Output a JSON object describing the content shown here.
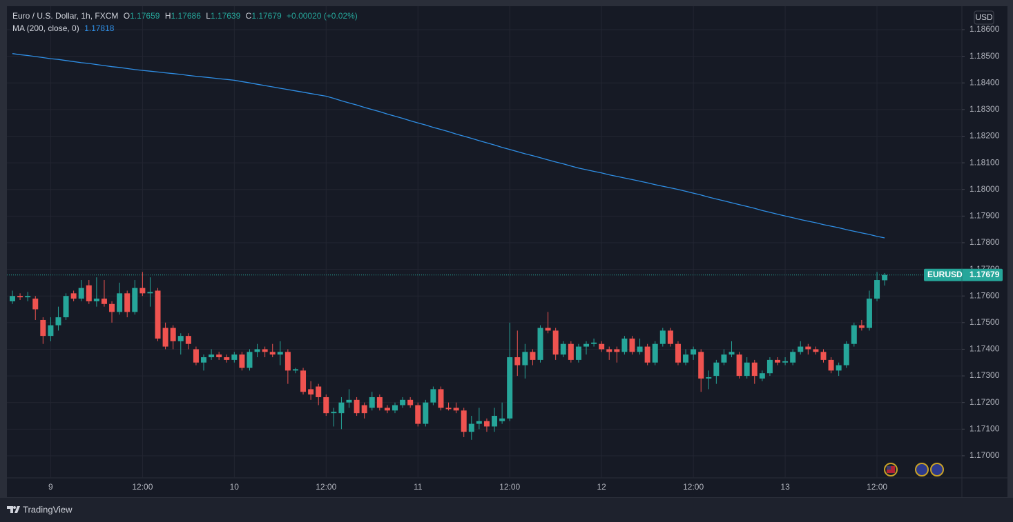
{
  "chart_data": {
    "type": "candlestick",
    "title": "Euro / U.S. Dollar, 1h, FXCM",
    "ohlc_labels": [
      "O",
      "H",
      "L",
      "C"
    ],
    "change": "+0.00020 (+0.02%)",
    "currency": "USD",
    "symbol": "EURUSD",
    "brand": "TradingView",
    "up_color": "#26a69a",
    "down_color": "#ef5350",
    "grid": true,
    "ylim": [
      1.16917,
      1.18688
    ],
    "yticks": [
      {
        "value": 1.17,
        "label": "1.17000"
      },
      {
        "value": 1.171,
        "label": "1.17100"
      },
      {
        "value": 1.172,
        "label": "1.17200"
      },
      {
        "value": 1.173,
        "label": "1.17300"
      },
      {
        "value": 1.174,
        "label": "1.17400"
      },
      {
        "value": 1.175,
        "label": "1.17500"
      },
      {
        "value": 1.176,
        "label": "1.17600"
      },
      {
        "value": 1.177,
        "label": "1.17700"
      },
      {
        "value": 1.178,
        "label": "1.17800"
      },
      {
        "value": 1.179,
        "label": "1.17900"
      },
      {
        "value": 1.18,
        "label": "1.18000"
      },
      {
        "value": 1.181,
        "label": "1.18100"
      },
      {
        "value": 1.182,
        "label": "1.18200"
      },
      {
        "value": 1.183,
        "label": "1.18300"
      },
      {
        "value": 1.184,
        "label": "1.18400"
      },
      {
        "value": 1.185,
        "label": "1.18500"
      },
      {
        "value": 1.186,
        "label": "1.18600"
      }
    ],
    "categories": [
      null,
      null,
      null,
      null,
      null,
      "9",
      null,
      null,
      null,
      null,
      null,
      null,
      null,
      null,
      null,
      null,
      null,
      "12:00",
      null,
      null,
      null,
      null,
      null,
      null,
      null,
      null,
      null,
      null,
      null,
      "10",
      null,
      null,
      null,
      null,
      null,
      null,
      null,
      null,
      null,
      null,
      null,
      "12:00",
      null,
      null,
      null,
      null,
      null,
      null,
      null,
      null,
      null,
      null,
      null,
      "11",
      null,
      null,
      null,
      null,
      null,
      null,
      null,
      null,
      null,
      null,
      null,
      "12:00",
      null,
      null,
      null,
      null,
      null,
      null,
      null,
      null,
      null,
      null,
      null,
      "12",
      null,
      null,
      null,
      null,
      null,
      null,
      null,
      null,
      null,
      null,
      null,
      "12:00",
      null,
      null,
      null,
      null,
      null,
      null,
      null,
      null,
      null,
      null,
      null,
      "13",
      null,
      null,
      null,
      null,
      null,
      null,
      null,
      null,
      null,
      null,
      null,
      "12:00",
      null
    ],
    "open": [
      1.1758,
      1.176,
      1.17595,
      1.1759,
      1.1751,
      1.1745,
      1.1749,
      1.1752,
      1.1761,
      1.1759,
      1.1764,
      1.1758,
      1.1759,
      1.1757,
      1.1754,
      1.1761,
      1.1754,
      1.1763,
      1.1761,
      1.1762,
      1.1748,
      1.1748,
      1.1743,
      1.1745,
      1.174,
      1.1735,
      1.1737,
      1.1738,
      1.1737,
      1.1736,
      1.1738,
      1.1733,
      1.1739,
      1.174,
      1.1739,
      1.1738,
      1.1739,
      1.1732,
      1.1732,
      1.1725,
      1.1726,
      1.1722,
      1.1716,
      1.1716,
      1.172,
      1.1721,
      1.1719,
      1.1718,
      1.1722,
      1.1718,
      1.1717,
      1.1719,
      1.1721,
      1.1719,
      1.1712,
      1.172,
      1.1725,
      1.1718,
      1.1718,
      1.1717,
      1.1709,
      1.1712,
      1.1713,
      1.1711,
      1.1713,
      1.1714,
      1.1737,
      1.1734,
      1.1739,
      1.1736,
      1.1748,
      1.1747,
      1.1738,
      1.1742,
      1.1736,
      1.1741,
      1.1742,
      1.1742,
      1.174,
      1.174,
      1.1739,
      1.1744,
      1.1739,
      1.1741,
      1.1735,
      1.1742,
      1.1747,
      1.1742,
      1.1735,
      1.1738,
      1.1739,
      1.1729,
      1.173,
      1.1735,
      1.1738,
      1.1738,
      1.173,
      1.1735,
      1.1729,
      1.1731,
      1.1736,
      1.1735,
      1.1735,
      1.1739,
      1.1741,
      1.174,
      1.1739,
      1.1736,
      1.1732,
      1.1734,
      1.1742,
      1.1749,
      1.1748,
      1.1759,
      1.17659
    ],
    "high": [
      1.1762,
      1.1761,
      1.17615,
      1.176,
      1.1752,
      1.1752,
      1.1756,
      1.1761,
      1.1762,
      1.1766,
      1.1766,
      1.1767,
      1.1766,
      1.1758,
      1.1765,
      1.1762,
      1.1766,
      1.1769,
      1.1767,
      1.1763,
      1.175,
      1.1749,
      1.1746,
      1.1746,
      1.1741,
      1.1738,
      1.174,
      1.1739,
      1.1738,
      1.1739,
      1.1739,
      1.174,
      1.1742,
      1.1741,
      1.1742,
      1.1743,
      1.174,
      1.1733,
      1.1733,
      1.1728,
      1.1727,
      1.1723,
      1.1718,
      1.1722,
      1.1725,
      1.1722,
      1.172,
      1.1724,
      1.1723,
      1.1719,
      1.172,
      1.1722,
      1.1722,
      1.172,
      1.1721,
      1.1726,
      1.1726,
      1.172,
      1.172,
      1.1718,
      1.1715,
      1.1718,
      1.1714,
      1.1718,
      1.172,
      1.175,
      1.1747,
      1.1742,
      1.174,
      1.1749,
      1.1754,
      1.1748,
      1.1743,
      1.1743,
      1.1742,
      1.1743,
      1.1744,
      1.1743,
      1.1741,
      1.1741,
      1.1745,
      1.1745,
      1.1744,
      1.1742,
      1.1743,
      1.1748,
      1.1748,
      1.1743,
      1.174,
      1.1741,
      1.174,
      1.1732,
      1.1736,
      1.174,
      1.1743,
      1.1739,
      1.1737,
      1.1736,
      1.1732,
      1.1737,
      1.1737,
      1.1737,
      1.174,
      1.1743,
      1.1742,
      1.1741,
      1.174,
      1.1737,
      1.1735,
      1.1743,
      1.175,
      1.1751,
      1.1762,
      1.1769,
      1.17686
    ],
    "low": [
      1.1757,
      1.17585,
      1.1758,
      1.1751,
      1.1742,
      1.1743,
      1.1747,
      1.1751,
      1.1758,
      1.1758,
      1.1757,
      1.1756,
      1.1756,
      1.175,
      1.1753,
      1.1752,
      1.1753,
      1.176,
      1.1756,
      1.1743,
      1.174,
      1.174,
      1.1738,
      1.174,
      1.1734,
      1.1732,
      1.1736,
      1.1736,
      1.1735,
      1.1735,
      1.1732,
      1.1732,
      1.1737,
      1.1737,
      1.1737,
      1.1734,
      1.1727,
      1.1731,
      1.1723,
      1.1721,
      1.1719,
      1.1715,
      1.1711,
      1.171,
      1.1718,
      1.1715,
      1.1714,
      1.1717,
      1.1717,
      1.1716,
      1.1716,
      1.1718,
      1.1718,
      1.1711,
      1.1711,
      1.1719,
      1.1717,
      1.1717,
      1.1716,
      1.1707,
      1.1706,
      1.171,
      1.1709,
      1.1709,
      1.1712,
      1.1713,
      1.173,
      1.1729,
      1.1734,
      1.1735,
      1.1746,
      1.1736,
      1.1737,
      1.1735,
      1.1735,
      1.1738,
      1.1741,
      1.1739,
      1.1736,
      1.1735,
      1.1738,
      1.1738,
      1.1738,
      1.1734,
      1.1734,
      1.1741,
      1.1741,
      1.1734,
      1.1734,
      1.1736,
      1.1724,
      1.1725,
      1.1727,
      1.1734,
      1.1737,
      1.1729,
      1.1729,
      1.1727,
      1.1728,
      1.173,
      1.1734,
      1.1734,
      1.1734,
      1.1738,
      1.1738,
      1.1738,
      1.1735,
      1.1731,
      1.173,
      1.1733,
      1.1741,
      1.1747,
      1.1747,
      1.1758,
      1.17639
    ],
    "close": [
      1.176,
      1.17595,
      1.176,
      1.1755,
      1.1745,
      1.1749,
      1.1752,
      1.176,
      1.1759,
      1.1763,
      1.1758,
      1.1759,
      1.1757,
      1.1754,
      1.1761,
      1.1754,
      1.1763,
      1.1761,
      1.17615,
      1.1744,
      1.1741,
      1.1743,
      1.1745,
      1.1742,
      1.1735,
      1.1737,
      1.1738,
      1.1737,
      1.1736,
      1.1738,
      1.1733,
      1.1739,
      1.174,
      1.1739,
      1.1738,
      1.1739,
      1.1732,
      1.17325,
      1.1724,
      1.1723,
      1.1722,
      1.1716,
      1.17165,
      1.172,
      1.1721,
      1.1716,
      1.1716,
      1.1722,
      1.1718,
      1.1717,
      1.1719,
      1.1721,
      1.1719,
      1.1712,
      1.172,
      1.1725,
      1.1718,
      1.17175,
      1.1717,
      1.1709,
      1.1712,
      1.1713,
      1.1711,
      1.1715,
      1.1714,
      1.1737,
      1.1734,
      1.1739,
      1.1736,
      1.1748,
      1.1747,
      1.1738,
      1.1742,
      1.1736,
      1.1741,
      1.1742,
      1.17425,
      1.174,
      1.1739,
      1.1739,
      1.1744,
      1.1739,
      1.1741,
      1.1735,
      1.1742,
      1.1747,
      1.1742,
      1.1735,
      1.1738,
      1.174,
      1.1729,
      1.17295,
      1.1735,
      1.1738,
      1.1739,
      1.173,
      1.1735,
      1.173,
      1.1731,
      1.1736,
      1.1735,
      1.17355,
      1.1739,
      1.1741,
      1.174,
      1.1739,
      1.1736,
      1.1732,
      1.1734,
      1.1742,
      1.1749,
      1.1748,
      1.1759,
      1.1766,
      1.17679
    ],
    "ma": {
      "name": "MA (200, close, 0)",
      "color": "#2f8fe6",
      "values": [
        1.1851,
        1.18506,
        1.18503,
        1.18499,
        1.18495,
        1.18491,
        1.18488,
        1.18484,
        1.1848,
        1.18476,
        1.18473,
        1.18469,
        1.18465,
        1.18461,
        1.18458,
        1.18454,
        1.1845,
        1.18447,
        1.18444,
        1.18441,
        1.18438,
        1.18435,
        1.18432,
        1.18428,
        1.18425,
        1.18422,
        1.18419,
        1.18416,
        1.18413,
        1.1841,
        1.18405,
        1.184,
        1.18395,
        1.1839,
        1.18385,
        1.1838,
        1.18375,
        1.1837,
        1.18365,
        1.1836,
        1.18355,
        1.1835,
        1.18342,
        1.18333,
        1.18325,
        1.18317,
        1.18308,
        1.183,
        1.18292,
        1.18283,
        1.18275,
        1.18267,
        1.18258,
        1.1825,
        1.18242,
        1.18233,
        1.18225,
        1.18217,
        1.18208,
        1.182,
        1.18192,
        1.18183,
        1.18175,
        1.18167,
        1.18158,
        1.1815,
        1.18142,
        1.18134,
        1.18127,
        1.18119,
        1.18111,
        1.18103,
        1.18096,
        1.18088,
        1.1808,
        1.18074,
        1.18068,
        1.18062,
        1.18055,
        1.18049,
        1.18043,
        1.18037,
        1.18031,
        1.18025,
        1.18018,
        1.18012,
        1.18006,
        1.18,
        1.17993,
        1.17986,
        1.17979,
        1.17971,
        1.17964,
        1.17957,
        1.1795,
        1.17943,
        1.17936,
        1.17929,
        1.17921,
        1.17914,
        1.17907,
        1.179,
        1.17894,
        1.17887,
        1.17881,
        1.17875,
        1.17868,
        1.17862,
        1.17856,
        1.17849,
        1.17843,
        1.17837,
        1.17831,
        1.17824,
        1.17818
      ]
    }
  }
}
